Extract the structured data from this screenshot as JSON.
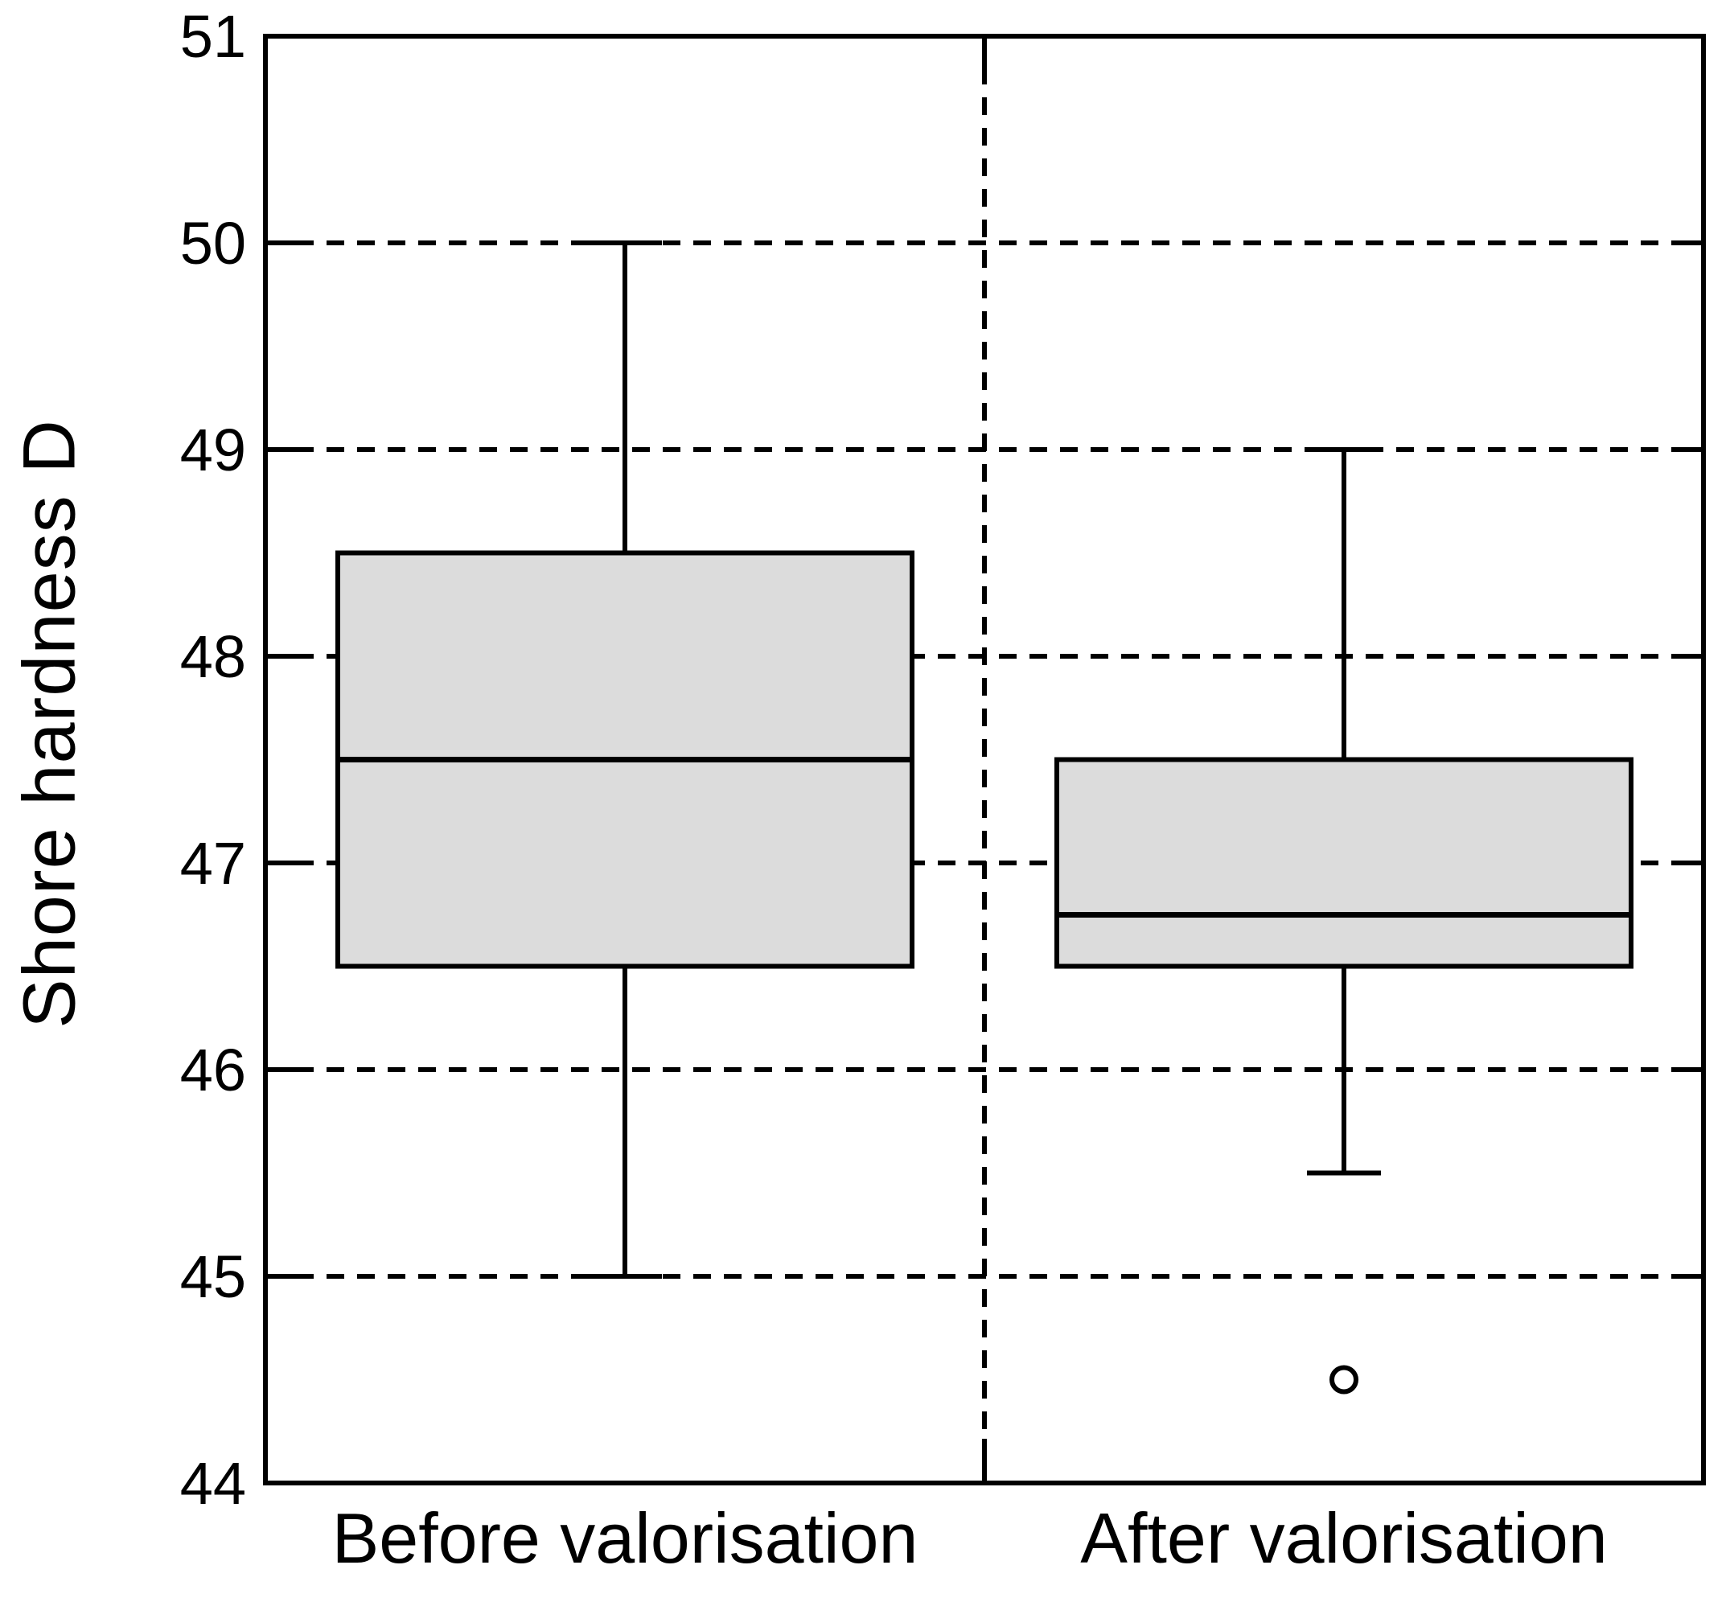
{
  "chart_data": {
    "type": "boxplot",
    "title": "",
    "xlabel": "",
    "ylabel": "Shore hardness D",
    "categories": [
      "Before valorisation",
      "After valorisation"
    ],
    "ylim": [
      44,
      51
    ],
    "yticks": [
      51,
      50,
      49,
      48,
      47,
      46,
      45,
      44
    ],
    "grid": {
      "horizontal_dashed_at": [
        50,
        49,
        48,
        47,
        46,
        45
      ],
      "vertical_dashed_separator_between_categories": true
    },
    "legend_position": "none",
    "series": [
      {
        "name": "Before valorisation",
        "q1": 46.5,
        "median": 47.5,
        "q3": 48.5,
        "whisker_low": 45.0,
        "whisker_high": 50.0,
        "outliers": []
      },
      {
        "name": "After valorisation",
        "q1": 46.5,
        "median": 46.75,
        "q3": 47.5,
        "whisker_low": 45.5,
        "whisker_high": 49.0,
        "outliers": [
          44.5
        ]
      }
    ],
    "colors": {
      "box_fill": "#dcdcdc",
      "line": "#000000",
      "background": "#ffffff"
    }
  }
}
